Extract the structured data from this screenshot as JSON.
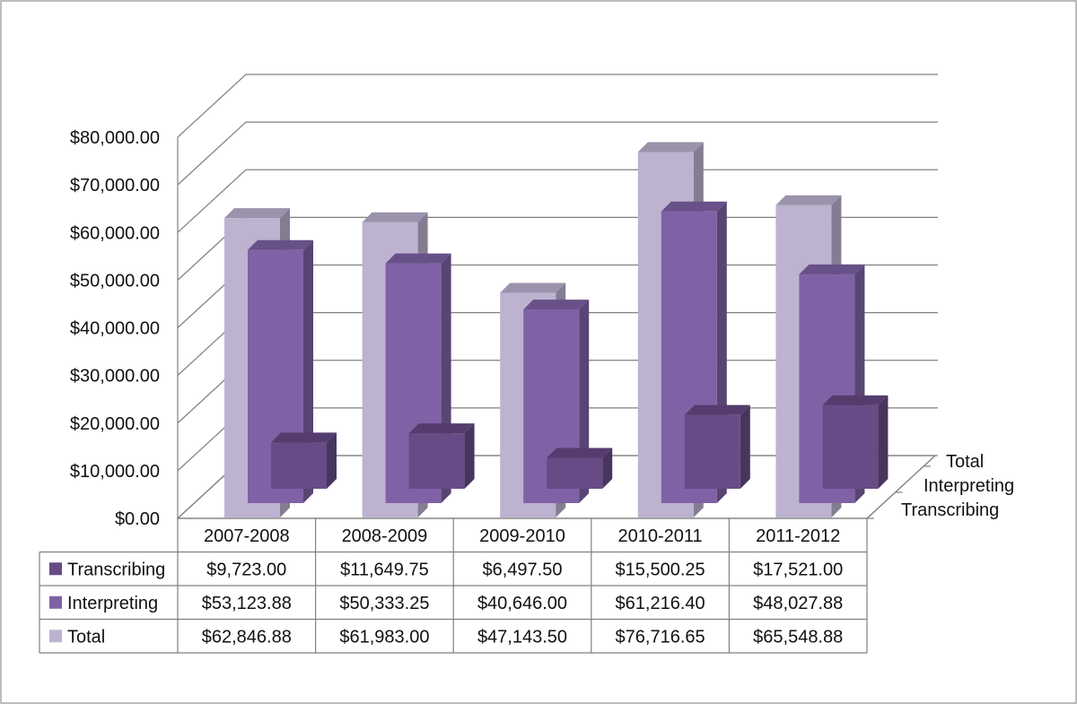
{
  "chart_data": {
    "type": "bar",
    "subtype": "3d-clustered-column-with-data-table",
    "categories": [
      "2007-2008",
      "2008-2009",
      "2009-2010",
      "2010-2011",
      "2011-2012"
    ],
    "series": [
      {
        "name": "Transcribing",
        "color": "#674b86",
        "values": [
          9723.0,
          11649.75,
          6497.5,
          15500.25,
          17521.0
        ],
        "labels": [
          "$9,723.00",
          "$11,649.75",
          "$6,497.50",
          "$15,500.25",
          "$17,521.00"
        ]
      },
      {
        "name": "Interpreting",
        "color": "#7f62a6",
        "values": [
          53123.88,
          50333.25,
          40646.0,
          61216.4,
          48027.88
        ],
        "labels": [
          "$53,123.88",
          "$50,333.25",
          "$40,646.00",
          "$61,216.40",
          "$48,027.88"
        ]
      },
      {
        "name": "Total",
        "color": "#bdb2d0",
        "values": [
          62846.88,
          61983.0,
          47143.5,
          76716.65,
          65548.88
        ],
        "labels": [
          "$62,846.88",
          "$61,983.00",
          "$47,143.50",
          "$76,716.65",
          "$65,548.88"
        ]
      }
    ],
    "y_ticks": [
      0,
      10000,
      20000,
      30000,
      40000,
      50000,
      60000,
      70000,
      80000
    ],
    "y_tick_labels": [
      "$0.00",
      "$10,000.00",
      "$20,000.00",
      "$30,000.00",
      "$40,000.00",
      "$50,000.00",
      "$60,000.00",
      "$70,000.00",
      "$80,000.00"
    ],
    "ylim": [
      0,
      80000
    ],
    "depth_axis_labels": [
      "Total",
      "Interpreting",
      "Transcribing"
    ],
    "title": "",
    "xlabel": "",
    "ylabel": "",
    "grid": true,
    "legend": "data-table"
  }
}
